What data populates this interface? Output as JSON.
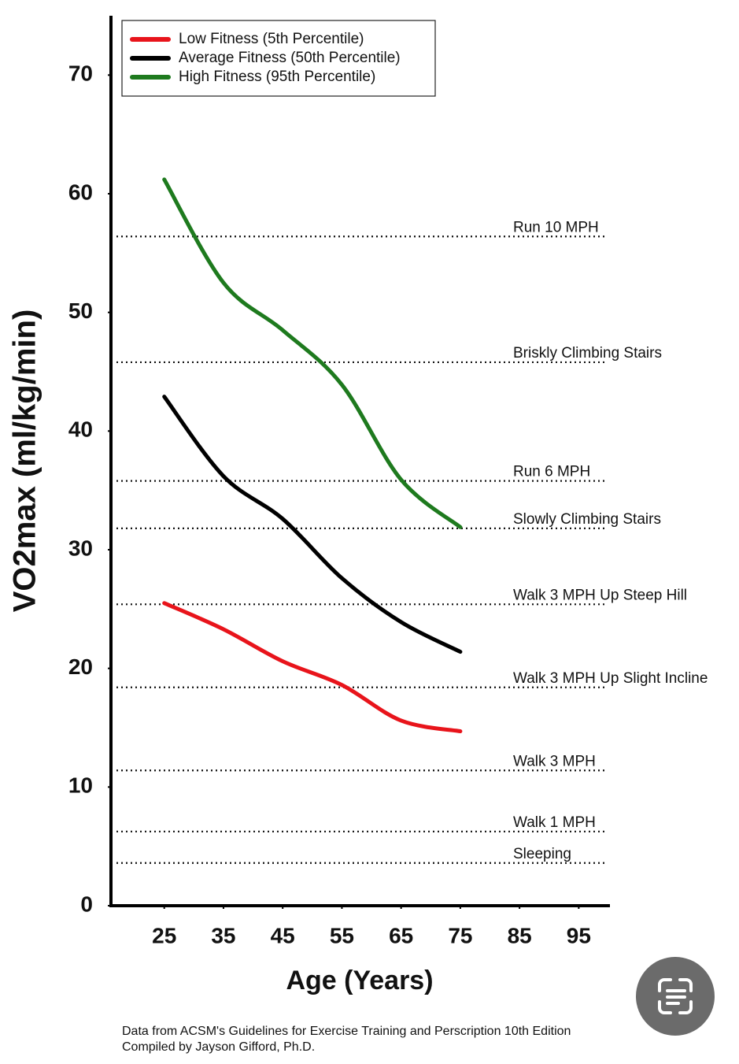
{
  "chart_data": {
    "type": "line",
    "xlabel": "Age (Years)",
    "ylabel": "VO2max (ml/kg/min)",
    "x": [
      25,
      35,
      45,
      55,
      65,
      75
    ],
    "series": [
      {
        "name": "Low Fitness (5th Percentile)",
        "color": "#e8141b",
        "values": [
          25.5,
          23.3,
          20.6,
          18.6,
          15.6,
          14.7
        ]
      },
      {
        "name": "Average Fitness (50th Percentile)",
        "color": "#000000",
        "values": [
          42.9,
          36.2,
          32.6,
          27.6,
          23.9,
          21.4
        ]
      },
      {
        "name": "High Fitness (95th Percentile)",
        "color": "#1e7a1e",
        "values": [
          61.2,
          52.5,
          48.5,
          43.9,
          35.9,
          31.9
        ]
      }
    ],
    "reference_lines": [
      {
        "label": "Run 10 MPH",
        "value": 56.4
      },
      {
        "label": "Briskly Climbing Stairs",
        "value": 45.8
      },
      {
        "label": "Run 6 MPH",
        "value": 35.8
      },
      {
        "label": "Slowly Climbing Stairs",
        "value": 31.8
      },
      {
        "label": "Walk 3 MPH Up Steep Hill",
        "value": 25.4
      },
      {
        "label": "Walk 3 MPH Up Slight Incline",
        "value": 18.4
      },
      {
        "label": "Walk 3 MPH",
        "value": 11.4
      },
      {
        "label": "Walk 1 MPH",
        "value": 6.25
      },
      {
        "label": "Sleeping",
        "value": 3.6
      }
    ],
    "xlim": [
      16,
      100
    ],
    "ylim": [
      0,
      75
    ],
    "xticks": [
      25,
      35,
      45,
      55,
      65,
      75,
      85,
      95
    ],
    "yticks": [
      0,
      10,
      20,
      30,
      40,
      50,
      60,
      70
    ],
    "legend": "upper left",
    "footnote": [
      "Data from ACSM's Guidelines for Exercise Training and Perscription 10th Edition",
      "Compiled by Jayson Gifford, Ph.D."
    ]
  }
}
